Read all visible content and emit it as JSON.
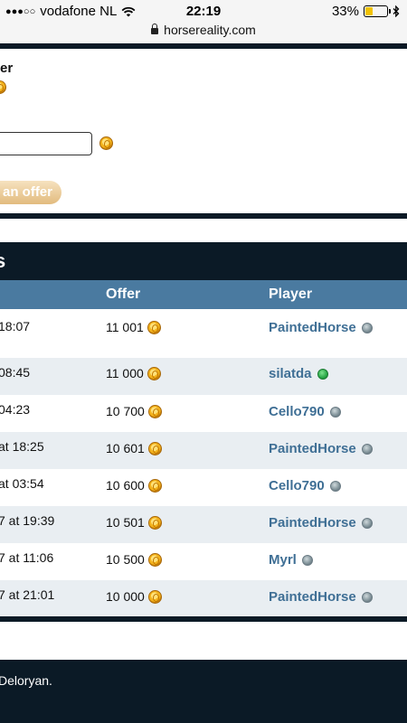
{
  "status_bar": {
    "signal": "●●●○○",
    "carrier": "vodafone NL",
    "time": "22:19",
    "battery_percent_text": "33%",
    "battery_level": 0.33,
    "url": "horsereality.com"
  },
  "offer_form": {
    "title": "er",
    "amount_value": "",
    "submit_label": "an offer"
  },
  "offers_panel": {
    "title": "s",
    "columns": [
      "Offer",
      "Player"
    ],
    "rows": [
      {
        "date": "18:07",
        "offer": "11 001",
        "player": "PaintedHorse",
        "online": false
      },
      {
        "date": "08:45",
        "offer": "11 000",
        "player": "silatda",
        "online": true
      },
      {
        "date": "04:23",
        "offer": "10 700",
        "player": "Cello790",
        "online": false
      },
      {
        "date": "at 18:25",
        "offer": "10 601",
        "player": "PaintedHorse",
        "online": false
      },
      {
        "date": "at 03:54",
        "offer": "10 600",
        "player": "Cello790",
        "online": false
      },
      {
        "date": "7 at 19:39",
        "offer": "10 501",
        "player": "PaintedHorse",
        "online": false
      },
      {
        "date": "7 at 11:06",
        "offer": "10 500",
        "player": "Myrl",
        "online": false
      },
      {
        "date": "7 at 21:01",
        "offer": "10 000",
        "player": "PaintedHorse",
        "online": false
      }
    ]
  },
  "footer": {
    "text": "Deloryan."
  },
  "colors": {
    "dark_navy": "#0b1a26",
    "table_header": "#4a7aa0",
    "player_link": "#3f6f95",
    "row_alt": "#e9eef2",
    "button_gold": "#e2bb7e"
  },
  "icons": [
    "wifi-icon",
    "lock-icon",
    "bluetooth-icon",
    "coin-icon",
    "status-dot-icon"
  ]
}
